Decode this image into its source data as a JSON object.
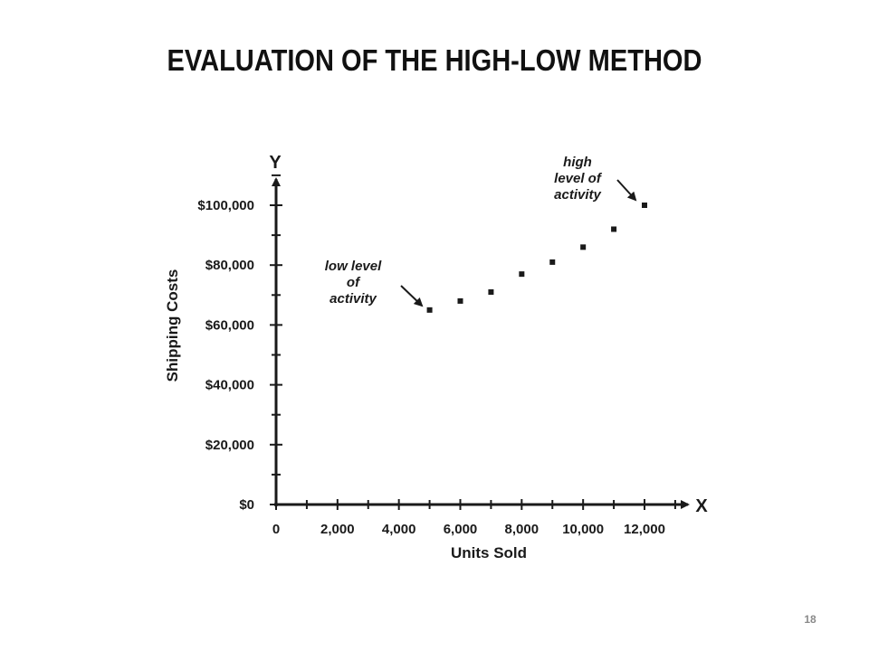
{
  "slide": {
    "title": "EVALUATION OF THE HIGH-LOW METHOD",
    "page_number": "18"
  },
  "chart_data": {
    "type": "scatter",
    "y_axis_letter": "Y",
    "x_axis_letter": "X",
    "xlabel": "Units Sold",
    "ylabel": "Shipping Costs",
    "xlim": [
      0,
      12000
    ],
    "ylim": [
      0,
      100000
    ],
    "x_ticks": [
      0,
      2000,
      4000,
      6000,
      8000,
      10000,
      12000
    ],
    "x_tick_labels": [
      "0",
      "2,000",
      "4,000",
      "6,000",
      "8,000",
      "10,000",
      "12,000"
    ],
    "y_ticks": [
      0,
      20000,
      40000,
      60000,
      80000,
      100000
    ],
    "y_tick_labels": [
      "$0",
      "$20,000",
      "$40,000",
      "$60,000",
      "$80,000",
      "$100,000"
    ],
    "points": [
      {
        "x": 5000,
        "y": 65000
      },
      {
        "x": 6000,
        "y": 68000
      },
      {
        "x": 7000,
        "y": 71000
      },
      {
        "x": 8000,
        "y": 77000
      },
      {
        "x": 9000,
        "y": 81000
      },
      {
        "x": 10000,
        "y": 86000
      },
      {
        "x": 11000,
        "y": 92000
      },
      {
        "x": 12000,
        "y": 100000
      }
    ],
    "annotations": [
      {
        "point_index": 0,
        "lines": [
          "low level",
          "of",
          "activity"
        ]
      },
      {
        "point_index": 7,
        "lines": [
          "high",
          "level of",
          "activity"
        ]
      }
    ],
    "colors": {
      "ink": "#1a1a1a"
    }
  }
}
